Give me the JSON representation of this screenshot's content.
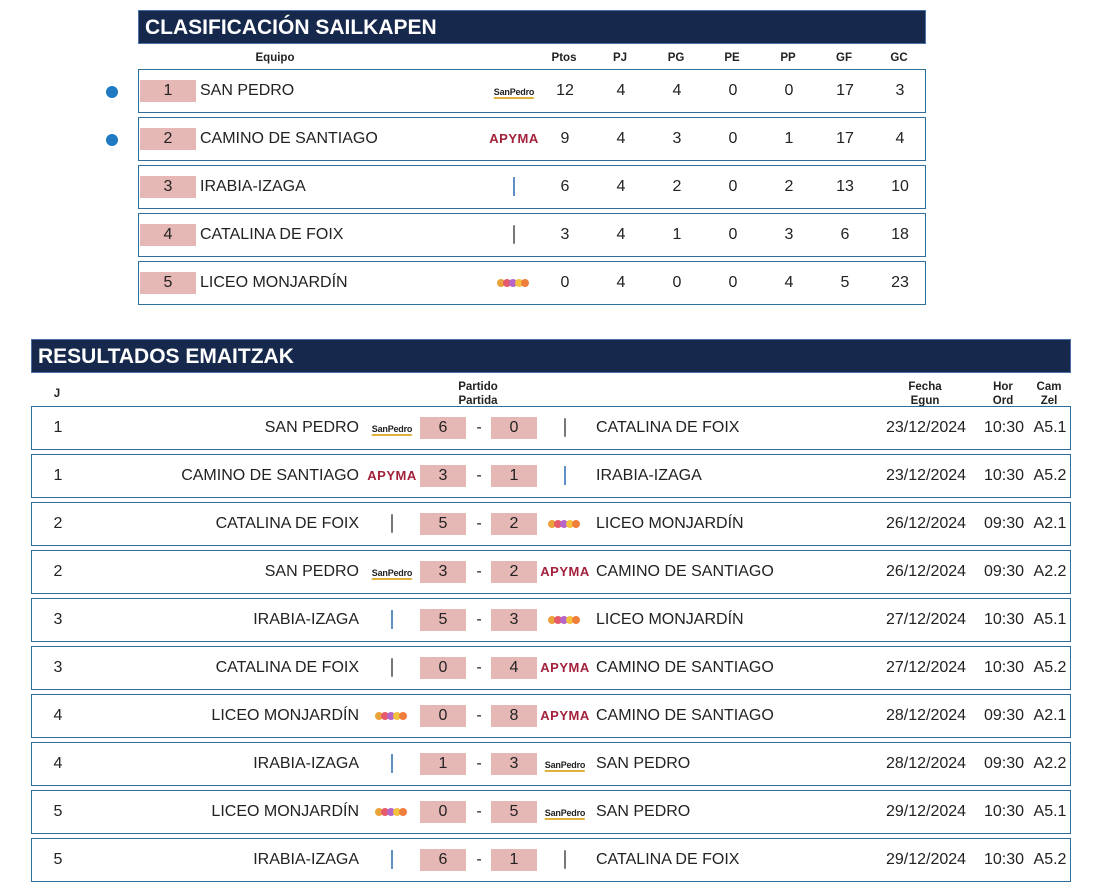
{
  "standings": {
    "title": "CLASIFICACIÓN SAILKAPEN",
    "headers": {
      "team": "Equipo",
      "pts": "Ptos",
      "pj": "PJ",
      "pg": "PG",
      "pe": "PE",
      "pp": "PP",
      "gf": "GF",
      "gc": "GC"
    },
    "rows": [
      {
        "pos": "1",
        "team": "SAN PEDRO",
        "logo": "sanpedro",
        "pts": "12",
        "pj": "4",
        "pg": "4",
        "pe": "0",
        "pp": "0",
        "gf": "17",
        "gc": "3",
        "qualified": true
      },
      {
        "pos": "2",
        "team": "CAMINO DE SANTIAGO",
        "logo": "apyma",
        "pts": "9",
        "pj": "4",
        "pg": "3",
        "pe": "0",
        "pp": "1",
        "gf": "17",
        "gc": "4",
        "qualified": true
      },
      {
        "pos": "3",
        "team": "IRABIA-IZAGA",
        "logo": "irabia",
        "pts": "6",
        "pj": "4",
        "pg": "2",
        "pe": "0",
        "pp": "2",
        "gf": "13",
        "gc": "10",
        "qualified": false
      },
      {
        "pos": "4",
        "team": "CATALINA DE FOIX",
        "logo": "catalina",
        "pts": "3",
        "pj": "4",
        "pg": "1",
        "pe": "0",
        "pp": "3",
        "gf": "6",
        "gc": "18",
        "qualified": false
      },
      {
        "pos": "5",
        "team": "LICEO MONJARDÍN",
        "logo": "liceo",
        "pts": "0",
        "pj": "4",
        "pg": "0",
        "pe": "0",
        "pp": "4",
        "gf": "5",
        "gc": "23",
        "qualified": false
      }
    ]
  },
  "results": {
    "title": "RESULTADOS EMAITZAK",
    "headers": {
      "j": "J",
      "match_1": "Partido",
      "match_2": "Partida",
      "date_1": "Fecha",
      "date_2": "Egun",
      "time_1": "Hor",
      "time_2": "Ord",
      "court_1": "Cam",
      "court_2": "Zel"
    },
    "rows": [
      {
        "j": "1",
        "home": "SAN PEDRO",
        "home_logo": "sanpedro",
        "home_score": "6",
        "sep": "-",
        "away_score": "0",
        "away_logo": "catalina",
        "away": "CATALINA DE FOIX",
        "date": "23/12/2024",
        "time": "10:30",
        "court": "A5.1"
      },
      {
        "j": "1",
        "home": "CAMINO DE SANTIAGO",
        "home_logo": "apyma",
        "home_score": "3",
        "sep": "-",
        "away_score": "1",
        "away_logo": "irabia",
        "away": "IRABIA-IZAGA",
        "date": "23/12/2024",
        "time": "10:30",
        "court": "A5.2"
      },
      {
        "j": "2",
        "home": "CATALINA DE FOIX",
        "home_logo": "catalina",
        "home_score": "5",
        "sep": "-",
        "away_score": "2",
        "away_logo": "liceo",
        "away": "LICEO MONJARDÍN",
        "date": "26/12/2024",
        "time": "09:30",
        "court": "A2.1"
      },
      {
        "j": "2",
        "home": "SAN PEDRO",
        "home_logo": "sanpedro",
        "home_score": "3",
        "sep": "-",
        "away_score": "2",
        "away_logo": "apyma",
        "away": "CAMINO DE SANTIAGO",
        "date": "26/12/2024",
        "time": "09:30",
        "court": "A2.2"
      },
      {
        "j": "3",
        "home": "IRABIA-IZAGA",
        "home_logo": "irabia",
        "home_score": "5",
        "sep": "-",
        "away_score": "3",
        "away_logo": "liceo",
        "away": "LICEO MONJARDÍN",
        "date": "27/12/2024",
        "time": "10:30",
        "court": "A5.1"
      },
      {
        "j": "3",
        "home": "CATALINA DE FOIX",
        "home_logo": "catalina",
        "home_score": "0",
        "sep": "-",
        "away_score": "4",
        "away_logo": "apyma",
        "away": "CAMINO DE SANTIAGO",
        "date": "27/12/2024",
        "time": "10:30",
        "court": "A5.2"
      },
      {
        "j": "4",
        "home": "LICEO MONJARDÍN",
        "home_logo": "liceo",
        "home_score": "0",
        "sep": "-",
        "away_score": "8",
        "away_logo": "apyma",
        "away": "CAMINO DE SANTIAGO",
        "date": "28/12/2024",
        "time": "09:30",
        "court": "A2.1"
      },
      {
        "j": "4",
        "home": "IRABIA-IZAGA",
        "home_logo": "irabia",
        "home_score": "1",
        "sep": "-",
        "away_score": "3",
        "away_logo": "sanpedro",
        "away": "SAN PEDRO",
        "date": "28/12/2024",
        "time": "09:30",
        "court": "A2.2"
      },
      {
        "j": "5",
        "home": "LICEO MONJARDÍN",
        "home_logo": "liceo",
        "home_score": "0",
        "sep": "-",
        "away_score": "5",
        "away_logo": "sanpedro",
        "away": "SAN PEDRO",
        "date": "29/12/2024",
        "time": "10:30",
        "court": "A5.1"
      },
      {
        "j": "5",
        "home": "IRABIA-IZAGA",
        "home_logo": "irabia",
        "home_score": "6",
        "sep": "-",
        "away_score": "1",
        "away_logo": "catalina",
        "away": "CATALINA DE FOIX",
        "date": "29/12/2024",
        "time": "10:30",
        "court": "A5.2"
      }
    ]
  },
  "logos": {
    "sanpedro": {
      "text": "SanPedro"
    },
    "apyma": {
      "text": "APYMA"
    },
    "liceo": {
      "colors": [
        "#e9a33a",
        "#e55b6b",
        "#b765c9",
        "#f2c13f",
        "#ef7d3c"
      ]
    }
  },
  "colors": {
    "header_bg": "#16284b",
    "score_bg": "#e6b8b5",
    "row_border": "#2f6f9c",
    "qualified_dot": "#1f7ac1"
  }
}
